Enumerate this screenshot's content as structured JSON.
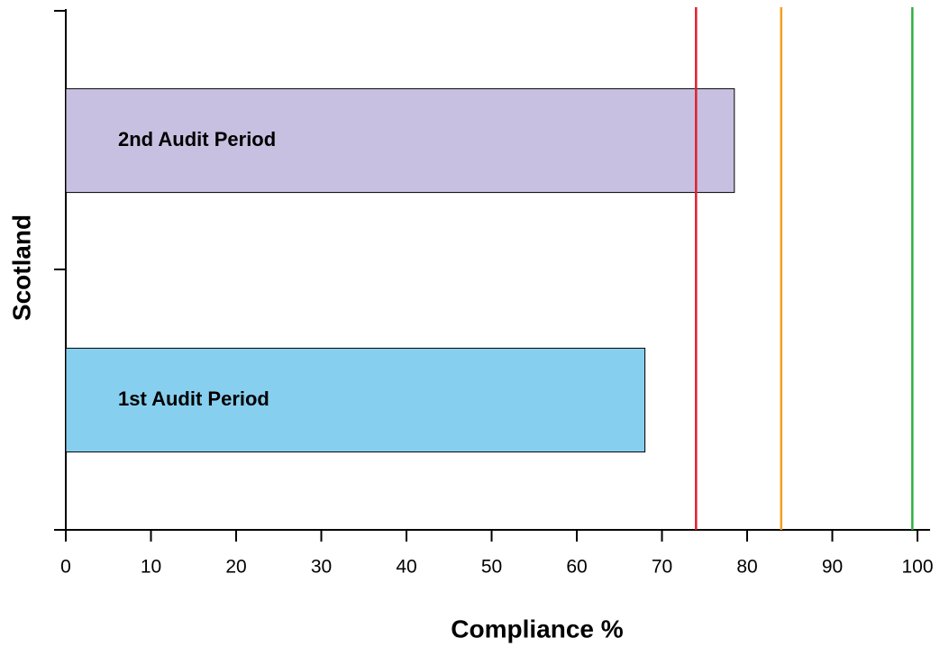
{
  "chart_data": {
    "type": "bar",
    "orientation": "horizontal",
    "x_label": "Compliance %",
    "y_label": "Scotland",
    "categories": [
      "2nd Audit Period",
      "1st Audit Period"
    ],
    "values": [
      78.5,
      68
    ],
    "colors": [
      "#c8c0e0",
      "#87cfef"
    ],
    "xlim": [
      0,
      100
    ],
    "xticks": [
      0,
      10,
      20,
      30,
      40,
      50,
      60,
      70,
      80,
      90,
      100
    ],
    "reference_lines": [
      {
        "value": 74,
        "color": "#e0202e"
      },
      {
        "value": 84,
        "color": "#f0a020"
      },
      {
        "value": 99.4,
        "color": "#30b040"
      }
    ]
  }
}
